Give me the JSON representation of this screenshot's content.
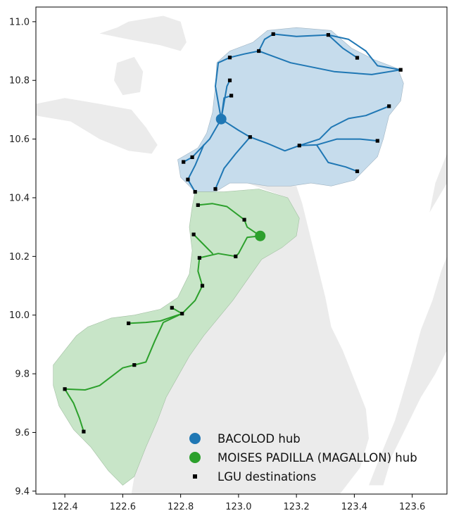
{
  "chart_data": {
    "type": "map",
    "xlim": [
      122.3,
      123.72
    ],
    "ylim": [
      9.39,
      11.05
    ],
    "x_ticks": [
      122.4,
      122.6,
      122.8,
      123.0,
      123.2,
      123.4,
      123.6
    ],
    "x_tick_labels": [
      "122.4",
      "122.6",
      "122.8",
      "123.0",
      "123.2",
      "123.4",
      "123.6"
    ],
    "y_ticks": [
      9.4,
      9.6,
      9.8,
      10.0,
      10.2,
      10.4,
      10.6,
      10.8,
      11.0
    ],
    "y_tick_labels": [
      "9.4",
      "9.6",
      "9.8",
      "10.0",
      "10.2",
      "10.4",
      "10.6",
      "10.8",
      "11.0"
    ],
    "grid": false,
    "legend_position": "bottom-center",
    "colors": {
      "land": "#ebebeb",
      "north_region_fill": "#c6dcec",
      "south_region_fill": "#c8e5c8",
      "north_route": "#1f77b4",
      "south_route": "#2ca02c",
      "destination": "#000000"
    },
    "hubs": [
      {
        "name": "BACOLOD",
        "lon": 122.94,
        "lat": 10.668,
        "color": "#1f77b4"
      },
      {
        "name": "MOISES PADILLA (MAGALLON)",
        "lon": 123.075,
        "lat": 10.27,
        "color": "#2ca02c"
      }
    ],
    "legend": [
      {
        "label": "BACOLOD hub",
        "marker": "circle",
        "color": "#1f77b4"
      },
      {
        "label": "MOISES PADILLA (MAGALLON) hub",
        "marker": "circle",
        "color": "#2ca02c"
      },
      {
        "label": "LGU destinations",
        "marker": "square",
        "color": "#000000"
      }
    ],
    "destinations_north": [
      [
        123.12,
        10.958
      ],
      [
        123.31,
        10.955
      ],
      [
        123.41,
        10.877
      ],
      [
        123.56,
        10.836
      ],
      [
        122.97,
        10.878
      ],
      [
        123.07,
        10.9
      ],
      [
        122.97,
        10.8
      ],
      [
        122.975,
        10.748
      ],
      [
        123.52,
        10.712
      ],
      [
        123.04,
        10.607
      ],
      [
        123.48,
        10.594
      ],
      [
        123.21,
        10.578
      ],
      [
        122.84,
        10.538
      ],
      [
        122.81,
        10.522
      ],
      [
        123.41,
        10.49
      ],
      [
        122.825,
        10.462
      ],
      [
        122.85,
        10.42
      ],
      [
        122.92,
        10.43
      ]
    ],
    "destinations_south": [
      [
        122.86,
        10.375
      ],
      [
        123.02,
        10.325
      ],
      [
        122.845,
        10.275
      ],
      [
        122.99,
        10.2
      ],
      [
        122.865,
        10.195
      ],
      [
        122.875,
        10.1
      ],
      [
        122.77,
        10.025
      ],
      [
        122.805,
        10.005
      ],
      [
        122.62,
        9.972
      ],
      [
        122.64,
        9.83
      ],
      [
        122.4,
        9.748
      ],
      [
        122.465,
        9.603
      ]
    ],
    "north_routes": [
      [
        [
          122.94,
          10.668
        ],
        [
          122.95,
          10.74
        ],
        [
          122.975,
          10.748
        ]
      ],
      [
        [
          122.94,
          10.668
        ],
        [
          122.96,
          10.78
        ],
        [
          122.97,
          10.8
        ]
      ],
      [
        [
          122.94,
          10.668
        ],
        [
          122.92,
          10.78
        ],
        [
          122.93,
          10.86
        ],
        [
          122.97,
          10.878
        ]
      ],
      [
        [
          122.97,
          10.878
        ],
        [
          123.02,
          10.89
        ],
        [
          123.07,
          10.9
        ]
      ],
      [
        [
          123.07,
          10.9
        ],
        [
          123.09,
          10.94
        ],
        [
          123.12,
          10.958
        ]
      ],
      [
        [
          123.12,
          10.958
        ],
        [
          123.2,
          10.95
        ],
        [
          123.31,
          10.955
        ]
      ],
      [
        [
          123.31,
          10.955
        ],
        [
          123.36,
          10.91
        ],
        [
          123.41,
          10.877
        ]
      ],
      [
        [
          123.31,
          10.955
        ],
        [
          123.38,
          10.94
        ],
        [
          123.44,
          10.9
        ],
        [
          123.48,
          10.85
        ],
        [
          123.56,
          10.836
        ]
      ],
      [
        [
          123.07,
          10.9
        ],
        [
          123.18,
          10.86
        ],
        [
          123.33,
          10.83
        ],
        [
          123.46,
          10.82
        ],
        [
          123.56,
          10.836
        ]
      ],
      [
        [
          122.94,
          10.668
        ],
        [
          123.0,
          10.63
        ],
        [
          123.04,
          10.607
        ]
      ],
      [
        [
          123.04,
          10.607
        ],
        [
          123.1,
          10.585
        ],
        [
          123.16,
          10.56
        ],
        [
          123.21,
          10.578
        ]
      ],
      [
        [
          123.21,
          10.578
        ],
        [
          123.28,
          10.6
        ],
        [
          123.32,
          10.64
        ],
        [
          123.38,
          10.67
        ],
        [
          123.44,
          10.68
        ],
        [
          123.52,
          10.712
        ]
      ],
      [
        [
          123.21,
          10.578
        ],
        [
          123.27,
          10.58
        ],
        [
          123.34,
          10.6
        ],
        [
          123.42,
          10.6
        ],
        [
          123.48,
          10.594
        ]
      ],
      [
        [
          123.27,
          10.58
        ],
        [
          123.31,
          10.52
        ],
        [
          123.37,
          10.505
        ],
        [
          123.41,
          10.49
        ]
      ],
      [
        [
          122.94,
          10.668
        ],
        [
          122.9,
          10.6
        ],
        [
          122.84,
          10.538
        ]
      ],
      [
        [
          122.84,
          10.538
        ],
        [
          122.81,
          10.522
        ]
      ],
      [
        [
          122.88,
          10.58
        ],
        [
          122.85,
          10.51
        ],
        [
          122.825,
          10.462
        ]
      ],
      [
        [
          122.825,
          10.462
        ],
        [
          122.85,
          10.42
        ]
      ],
      [
        [
          123.04,
          10.607
        ],
        [
          122.99,
          10.55
        ],
        [
          122.95,
          10.5
        ],
        [
          122.92,
          10.43
        ]
      ]
    ],
    "south_routes": [
      [
        [
          123.075,
          10.27
        ],
        [
          123.03,
          10.3
        ],
        [
          123.02,
          10.325
        ]
      ],
      [
        [
          123.02,
          10.325
        ],
        [
          122.96,
          10.37
        ],
        [
          122.91,
          10.38
        ],
        [
          122.86,
          10.375
        ]
      ],
      [
        [
          123.075,
          10.27
        ],
        [
          123.03,
          10.265
        ],
        [
          123.0,
          10.21
        ],
        [
          122.99,
          10.2
        ]
      ],
      [
        [
          122.99,
          10.2
        ],
        [
          122.93,
          10.21
        ],
        [
          122.865,
          10.195
        ]
      ],
      [
        [
          122.91,
          10.21
        ],
        [
          122.87,
          10.25
        ],
        [
          122.845,
          10.275
        ]
      ],
      [
        [
          122.865,
          10.195
        ],
        [
          122.86,
          10.15
        ],
        [
          122.875,
          10.1
        ]
      ],
      [
        [
          122.875,
          10.1
        ],
        [
          122.85,
          10.05
        ],
        [
          122.805,
          10.005
        ]
      ],
      [
        [
          122.805,
          10.005
        ],
        [
          122.77,
          10.025
        ]
      ],
      [
        [
          122.805,
          10.005
        ],
        [
          122.73,
          9.98
        ],
        [
          122.68,
          9.975
        ],
        [
          122.62,
          9.972
        ]
      ],
      [
        [
          122.805,
          10.005
        ],
        [
          122.74,
          9.975
        ],
        [
          122.71,
          9.91
        ],
        [
          122.68,
          9.84
        ],
        [
          122.64,
          9.83
        ]
      ],
      [
        [
          122.64,
          9.83
        ],
        [
          122.6,
          9.82
        ],
        [
          122.56,
          9.79
        ],
        [
          122.52,
          9.76
        ],
        [
          122.47,
          9.745
        ],
        [
          122.4,
          9.748
        ]
      ],
      [
        [
          122.4,
          9.748
        ],
        [
          122.43,
          9.7
        ],
        [
          122.45,
          9.65
        ],
        [
          122.465,
          9.603
        ]
      ]
    ],
    "north_region": [
      [
        122.97,
        10.45
      ],
      [
        122.92,
        10.42
      ],
      [
        122.85,
        10.42
      ],
      [
        122.8,
        10.47
      ],
      [
        122.79,
        10.53
      ],
      [
        122.86,
        10.57
      ],
      [
        122.89,
        10.62
      ],
      [
        122.91,
        10.69
      ],
      [
        122.92,
        10.78
      ],
      [
        122.925,
        10.86
      ],
      [
        122.97,
        10.9
      ],
      [
        123.05,
        10.93
      ],
      [
        123.1,
        10.97
      ],
      [
        123.2,
        10.98
      ],
      [
        123.32,
        10.97
      ],
      [
        123.39,
        10.91
      ],
      [
        123.47,
        10.87
      ],
      [
        123.55,
        10.84
      ],
      [
        123.57,
        10.79
      ],
      [
        123.56,
        10.73
      ],
      [
        123.52,
        10.68
      ],
      [
        123.5,
        10.6
      ],
      [
        123.48,
        10.54
      ],
      [
        123.44,
        10.5
      ],
      [
        123.4,
        10.46
      ],
      [
        123.32,
        10.44
      ],
      [
        123.25,
        10.45
      ],
      [
        123.18,
        10.44
      ],
      [
        123.1,
        10.44
      ],
      [
        123.03,
        10.45
      ]
    ],
    "south_region": [
      [
        122.85,
        10.42
      ],
      [
        122.95,
        10.42
      ],
      [
        123.07,
        10.43
      ],
      [
        123.17,
        10.4
      ],
      [
        123.21,
        10.33
      ],
      [
        123.2,
        10.27
      ],
      [
        123.15,
        10.23
      ],
      [
        123.08,
        10.19
      ],
      [
        123.03,
        10.12
      ],
      [
        122.98,
        10.05
      ],
      [
        122.93,
        9.99
      ],
      [
        122.88,
        9.93
      ],
      [
        122.83,
        9.86
      ],
      [
        122.79,
        9.79
      ],
      [
        122.75,
        9.72
      ],
      [
        122.72,
        9.64
      ],
      [
        122.68,
        9.55
      ],
      [
        122.64,
        9.45
      ],
      [
        122.6,
        9.42
      ],
      [
        122.55,
        9.47
      ],
      [
        122.49,
        9.55
      ],
      [
        122.43,
        9.61
      ],
      [
        122.38,
        9.69
      ],
      [
        122.36,
        9.76
      ],
      [
        122.36,
        9.83
      ],
      [
        122.4,
        9.88
      ],
      [
        122.44,
        9.93
      ],
      [
        122.48,
        9.96
      ],
      [
        122.56,
        9.99
      ],
      [
        122.64,
        10.0
      ],
      [
        122.73,
        10.02
      ],
      [
        122.79,
        10.06
      ],
      [
        122.83,
        10.14
      ],
      [
        122.84,
        10.22
      ],
      [
        122.83,
        10.3
      ],
      [
        122.84,
        10.37
      ]
    ],
    "other_land": [
      [
        [
          122.3,
          10.72
        ],
        [
          122.4,
          10.74
        ],
        [
          122.52,
          10.72
        ],
        [
          122.63,
          10.7
        ],
        [
          122.68,
          10.64
        ],
        [
          122.72,
          10.58
        ],
        [
          122.7,
          10.55
        ],
        [
          122.62,
          10.56
        ],
        [
          122.52,
          10.6
        ],
        [
          122.42,
          10.66
        ],
        [
          122.3,
          10.68
        ]
      ],
      [
        [
          122.52,
          10.96
        ],
        [
          122.58,
          10.98
        ],
        [
          122.62,
          11.0
        ],
        [
          122.74,
          11.02
        ],
        [
          122.8,
          11.0
        ],
        [
          122.82,
          10.93
        ],
        [
          122.8,
          10.9
        ],
        [
          122.73,
          10.92
        ],
        [
          122.62,
          10.94
        ]
      ],
      [
        [
          122.58,
          10.86
        ],
        [
          122.64,
          10.88
        ],
        [
          122.67,
          10.83
        ],
        [
          122.66,
          10.76
        ],
        [
          122.6,
          10.75
        ],
        [
          122.57,
          10.8
        ]
      ],
      [
        [
          123.35,
          9.39
        ],
        [
          123.42,
          9.48
        ],
        [
          123.45,
          9.58
        ],
        [
          123.44,
          9.68
        ],
        [
          123.4,
          9.78
        ],
        [
          123.36,
          9.88
        ],
        [
          123.32,
          9.96
        ],
        [
          123.3,
          10.06
        ],
        [
          123.28,
          10.14
        ],
        [
          123.26,
          10.22
        ],
        [
          123.24,
          10.3
        ],
        [
          123.22,
          10.38
        ],
        [
          123.2,
          10.44
        ],
        [
          123.1,
          10.44
        ],
        [
          123.03,
          10.45
        ],
        [
          123.17,
          10.4
        ],
        [
          123.21,
          10.33
        ],
        [
          123.2,
          10.27
        ],
        [
          123.15,
          10.23
        ],
        [
          123.08,
          10.19
        ],
        [
          123.03,
          10.12
        ],
        [
          122.98,
          10.05
        ],
        [
          122.93,
          9.99
        ],
        [
          122.88,
          9.93
        ],
        [
          122.83,
          9.86
        ],
        [
          122.79,
          9.79
        ],
        [
          122.75,
          9.72
        ],
        [
          122.72,
          9.64
        ],
        [
          122.68,
          9.55
        ],
        [
          122.64,
          9.45
        ],
        [
          122.63,
          9.39
        ]
      ],
      [
        [
          123.45,
          9.42
        ],
        [
          123.49,
          9.52
        ],
        [
          123.54,
          9.64
        ],
        [
          123.57,
          9.74
        ],
        [
          123.6,
          9.84
        ],
        [
          123.63,
          9.95
        ],
        [
          123.67,
          10.05
        ],
        [
          123.7,
          10.15
        ],
        [
          123.72,
          10.2
        ],
        [
          123.72,
          9.88
        ],
        [
          123.68,
          9.8
        ],
        [
          123.63,
          9.72
        ],
        [
          123.58,
          9.62
        ],
        [
          123.53,
          9.52
        ],
        [
          123.5,
          9.42
        ]
      ],
      [
        [
          123.66,
          10.35
        ],
        [
          123.72,
          10.45
        ],
        [
          123.72,
          10.55
        ],
        [
          123.68,
          10.45
        ]
      ]
    ]
  }
}
